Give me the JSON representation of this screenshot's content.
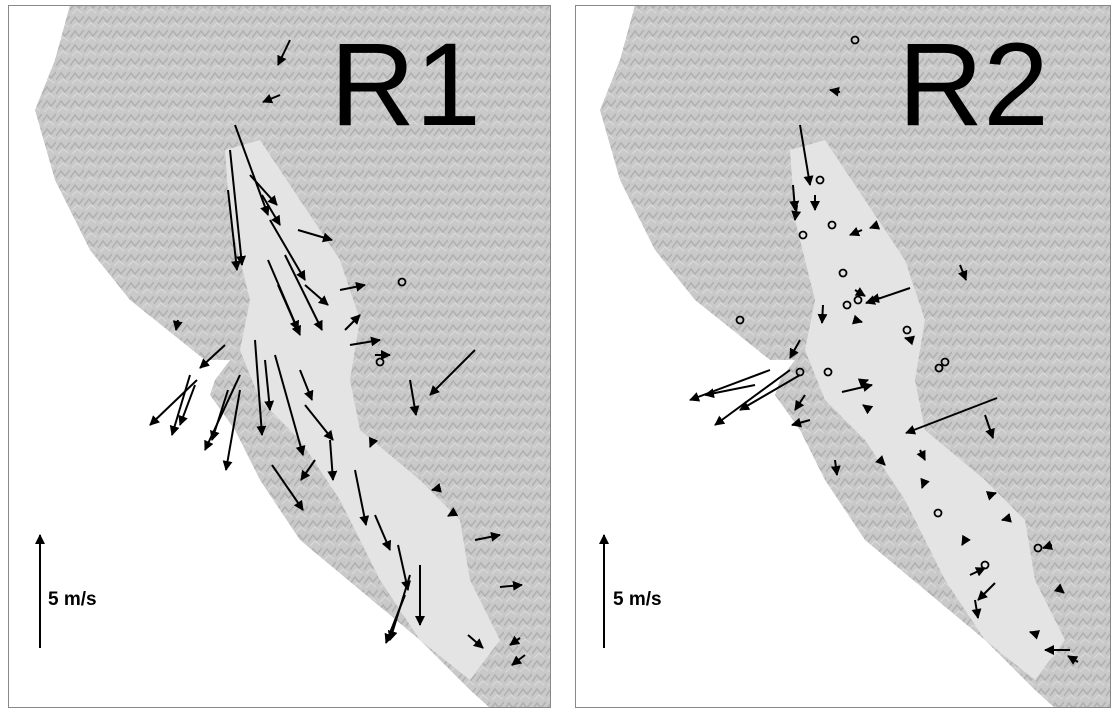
{
  "panels": [
    {
      "label": "R1",
      "scale_label": "5 m/s"
    },
    {
      "label": "R2",
      "scale_label": "5 m/s"
    }
  ]
}
